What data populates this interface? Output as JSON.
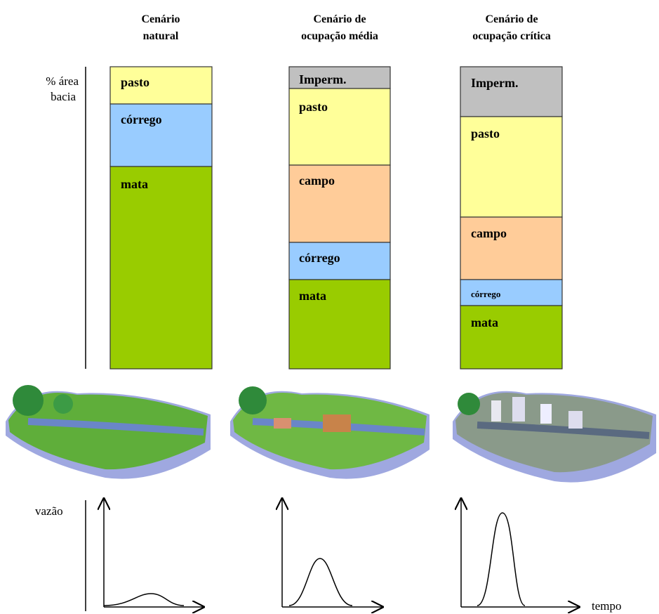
{
  "scenarios": [
    {
      "title": [
        "Cenário",
        "natural"
      ],
      "segments": [
        "pasto",
        "córrego",
        "mata"
      ]
    },
    {
      "title": [
        "Cenário de",
        "ocupação média"
      ],
      "segments": [
        "Imperm.",
        "pasto",
        "campo",
        "córrego",
        "mata"
      ]
    },
    {
      "title": [
        "Cenário de",
        "ocupação crítica"
      ],
      "segments": [
        "Imperm.",
        "pasto",
        "campo",
        "córrego",
        "mata"
      ]
    }
  ],
  "area_label": [
    "% área",
    "bacia"
  ],
  "flow_label": "vazão",
  "time_label": "tempo"
}
